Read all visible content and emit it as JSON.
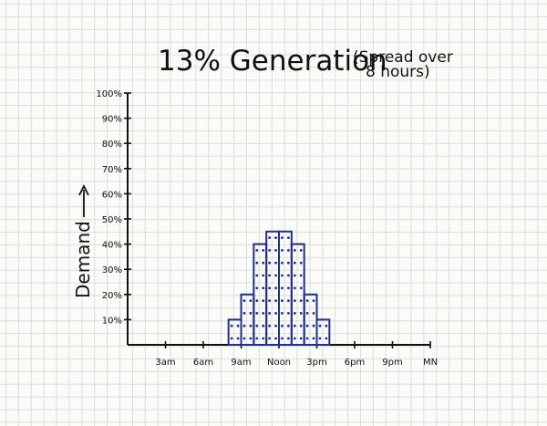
{
  "chart_data": {
    "type": "bar",
    "title": "13% Generation",
    "subtitle": "(Spread over 8 hours)",
    "xlabel": "",
    "ylabel": "Demand",
    "ylim": [
      0,
      100
    ],
    "y_ticks": [
      "10%",
      "20%",
      "30%",
      "40%",
      "50%",
      "60%",
      "70%",
      "80%",
      "90%",
      "100%"
    ],
    "x_ticks": [
      "3am",
      "6am",
      "9am",
      "Noon",
      "3pm",
      "6pm",
      "9pm",
      "MN"
    ],
    "x_tick_hours": [
      3,
      6,
      9,
      12,
      15,
      18,
      21,
      24
    ],
    "x_range_hours": [
      0,
      24
    ],
    "hours": [
      8,
      9,
      10,
      11,
      12,
      13,
      14,
      15
    ],
    "values": [
      10,
      20,
      40,
      45,
      45,
      40,
      20,
      10
    ],
    "grid": true,
    "colors": {
      "fill_outline": "#1f2f8c",
      "text": "#111111",
      "axis": "#111111"
    }
  }
}
